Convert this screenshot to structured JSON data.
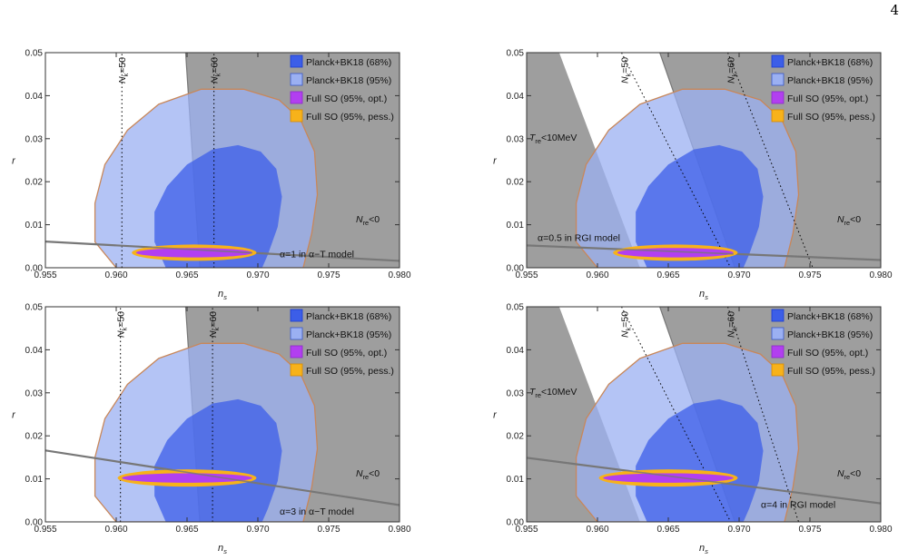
{
  "page_number": "4",
  "colors": {
    "grey_region": "#9e9e9e",
    "planck68": "#3c5ee8",
    "planck95": "#9bb0f2",
    "so_opt": "#b23ff0",
    "so_pess": "#f7b21a",
    "model_line": "#777777",
    "contour_edge": "#c8875a"
  },
  "chart_data": [
    {
      "type": "scatter",
      "panel": "top-left",
      "xlabel": "n_s",
      "ylabel": "r",
      "xlim": [
        0.955,
        0.98
      ],
      "ylim": [
        0,
        0.05
      ],
      "xticks": [
        "0.955",
        "0.960",
        "0.965",
        "0.970",
        "0.975",
        "0.980"
      ],
      "yticks": [
        "0.00",
        "0.01",
        "0.02",
        "0.03",
        "0.04",
        "0.05"
      ],
      "legend": [
        "Planck+BK18 (68%)",
        "Planck+BK18 (95%)",
        "Full SO (95%, opt.)",
        "Full SO (95%, pess.)"
      ],
      "legend_position": "top-right",
      "region_label": "N_re<0",
      "treheat_label": "",
      "nk_labels": [
        "N_k=50",
        "N_k=60"
      ],
      "model_label": "α=1 in α−T model",
      "model_line": [
        [
          0.955,
          0.0061
        ],
        [
          0.98,
          0.0016
        ]
      ],
      "grey_boundary": [
        [
          0.9649,
          0.05
        ],
        [
          0.9651,
          0.04
        ],
        [
          0.9653,
          0.03
        ],
        [
          0.9655,
          0.02
        ],
        [
          0.9657,
          0.01
        ],
        [
          0.9659,
          0.0
        ]
      ],
      "nk_lines": [
        [
          [
            0.9604,
            0
          ],
          [
            0.9604,
            0.05
          ]
        ],
        [
          [
            0.9669,
            0
          ],
          [
            0.9669,
            0.05
          ]
        ]
      ],
      "so_center": [
        0.9655,
        0.0035
      ],
      "so_opt_halfwidths": [
        0.0041,
        0.0011
      ],
      "so_pess_halfwidths": [
        0.0044,
        0.0019
      ]
    },
    {
      "type": "scatter",
      "panel": "top-right",
      "xlabel": "n_s",
      "ylabel": "r",
      "xlim": [
        0.955,
        0.98
      ],
      "ylim": [
        0,
        0.05
      ],
      "xticks": [
        "0.955",
        "0.960",
        "0.965",
        "0.970",
        "0.975",
        "0.980"
      ],
      "yticks": [
        "0.00",
        "0.01",
        "0.02",
        "0.03",
        "0.04",
        "0.05"
      ],
      "legend": [
        "Planck+BK18 (68%)",
        "Planck+BK18 (95%)",
        "Full SO (95%, opt.)",
        "Full SO (95%, pess.)"
      ],
      "legend_position": "top-right",
      "region_label": "N_re<0",
      "treheat_label": "T_re<10MeV",
      "nk_labels": [
        "N_k=50",
        "N_k=60"
      ],
      "model_label": "α=0.5 in RGI model",
      "model_line": [
        [
          0.955,
          0.0052
        ],
        [
          0.98,
          0.0018
        ]
      ],
      "grey_boundary": [
        [
          0.9644,
          0.05
        ],
        [
          0.9697,
          0.0
        ]
      ],
      "grey_left_boundary": [
        [
          0.9573,
          0.05
        ],
        [
          0.963,
          0.0
        ]
      ],
      "nk_lines": [
        [
          [
            0.9617,
            0.05
          ],
          [
            0.9694,
            0.0
          ]
        ],
        [
          [
            0.9692,
            0.05
          ],
          [
            0.9752,
            0.0
          ]
        ]
      ],
      "so_center": [
        0.9655,
        0.0035
      ],
      "so_opt_halfwidths": [
        0.0041,
        0.0011
      ],
      "so_pess_halfwidths": [
        0.0044,
        0.0019
      ]
    },
    {
      "type": "scatter",
      "panel": "bottom-left",
      "xlabel": "n_s",
      "ylabel": "r",
      "xlim": [
        0.955,
        0.98
      ],
      "ylim": [
        0,
        0.05
      ],
      "xticks": [
        "0.955",
        "0.960",
        "0.965",
        "0.970",
        "0.975",
        "0.980"
      ],
      "yticks": [
        "0.00",
        "0.01",
        "0.02",
        "0.03",
        "0.04",
        "0.05"
      ],
      "legend": [
        "Planck+BK18 (68%)",
        "Planck+BK18 (95%)",
        "Full SO (95%, opt.)",
        "Full SO (95%, pess.)"
      ],
      "legend_position": "top-right",
      "region_label": "N_re<0",
      "treheat_label": "",
      "nk_labels": [
        "N_k=50",
        "N_k=60"
      ],
      "model_label": "α=3 in α−T model",
      "model_line": [
        [
          0.955,
          0.0166
        ],
        [
          0.98,
          0.0039
        ]
      ],
      "grey_boundary": [
        [
          0.9649,
          0.05
        ],
        [
          0.9651,
          0.04
        ],
        [
          0.9653,
          0.03
        ],
        [
          0.9655,
          0.02
        ],
        [
          0.9657,
          0.01
        ],
        [
          0.9659,
          0.0
        ]
      ],
      "nk_lines": [
        [
          [
            0.9603,
            0
          ],
          [
            0.9603,
            0.05
          ]
        ],
        [
          [
            0.9668,
            0
          ],
          [
            0.9668,
            0.05
          ]
        ]
      ],
      "so_center": [
        0.965,
        0.0102
      ],
      "so_opt_halfwidths": [
        0.0046,
        0.0011
      ],
      "so_pess_halfwidths": [
        0.0049,
        0.002
      ]
    },
    {
      "type": "scatter",
      "panel": "bottom-right",
      "xlabel": "n_s",
      "ylabel": "r",
      "xlim": [
        0.955,
        0.98
      ],
      "ylim": [
        0,
        0.05
      ],
      "xticks": [
        "0.955",
        "0.960",
        "0.965",
        "0.970",
        "0.975",
        "0.980"
      ],
      "yticks": [
        "0.00",
        "0.01",
        "0.02",
        "0.03",
        "0.04",
        "0.05"
      ],
      "legend": [
        "Planck+BK18 (68%)",
        "Planck+BK18 (95%)",
        "Full SO (95%, opt.)",
        "Full SO (95%, pess.)"
      ],
      "legend_position": "top-right",
      "region_label": "N_re<0",
      "treheat_label": "T_re<10MeV",
      "nk_labels": [
        "N_k=50",
        "N_k=60"
      ],
      "model_label": "α=4 in RGI model",
      "model_line": [
        [
          0.955,
          0.0149
        ],
        [
          0.98,
          0.0043
        ]
      ],
      "grey_boundary": [
        [
          0.9644,
          0.05
        ],
        [
          0.9697,
          0.0
        ]
      ],
      "grey_left_boundary": [
        [
          0.9573,
          0.05
        ],
        [
          0.963,
          0.0
        ]
      ],
      "nk_lines": [
        [
          [
            0.9617,
            0.05
          ],
          [
            0.9694,
            0.0
          ]
        ],
        [
          [
            0.9692,
            0.05
          ],
          [
            0.9742,
            0.0
          ]
        ]
      ],
      "so_center": [
        0.965,
        0.0102
      ],
      "so_opt_halfwidths": [
        0.0046,
        0.0011
      ],
      "so_pess_halfwidths": [
        0.0049,
        0.002
      ]
    }
  ],
  "planck_contours": {
    "c95": [
      [
        0.96,
        0.0
      ],
      [
        0.9585,
        0.006
      ],
      [
        0.9585,
        0.015
      ],
      [
        0.9592,
        0.024
      ],
      [
        0.9608,
        0.032
      ],
      [
        0.963,
        0.038
      ],
      [
        0.966,
        0.0415
      ],
      [
        0.969,
        0.0415
      ],
      [
        0.9715,
        0.039
      ],
      [
        0.973,
        0.0345
      ],
      [
        0.974,
        0.027
      ],
      [
        0.9742,
        0.017
      ],
      [
        0.9738,
        0.008
      ],
      [
        0.9732,
        0.0
      ]
    ],
    "c68": [
      [
        0.9635,
        0.0
      ],
      [
        0.9627,
        0.006
      ],
      [
        0.9627,
        0.013
      ],
      [
        0.9636,
        0.019
      ],
      [
        0.965,
        0.024
      ],
      [
        0.9668,
        0.0275
      ],
      [
        0.9686,
        0.0285
      ],
      [
        0.9702,
        0.027
      ],
      [
        0.9713,
        0.023
      ],
      [
        0.9717,
        0.0165
      ],
      [
        0.9714,
        0.0095
      ],
      [
        0.9707,
        0.003
      ],
      [
        0.9703,
        0.0
      ]
    ]
  }
}
